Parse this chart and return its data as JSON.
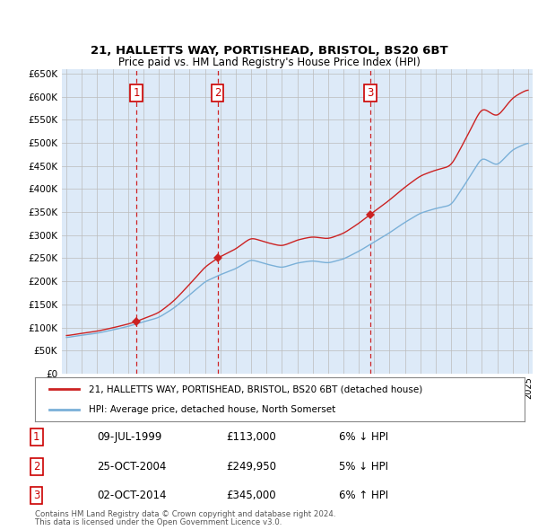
{
  "title1": "21, HALLETTS WAY, PORTISHEAD, BRISTOL, BS20 6BT",
  "title2": "Price paid vs. HM Land Registry's House Price Index (HPI)",
  "ylim": [
    0,
    660000
  ],
  "yticks": [
    0,
    50000,
    100000,
    150000,
    200000,
    250000,
    300000,
    350000,
    400000,
    450000,
    500000,
    550000,
    600000,
    650000
  ],
  "ytick_labels": [
    "£0",
    "£50K",
    "£100K",
    "£150K",
    "£200K",
    "£250K",
    "£300K",
    "£350K",
    "£400K",
    "£450K",
    "£500K",
    "£550K",
    "£600K",
    "£650K"
  ],
  "transactions": [
    {
      "date": 1999.54,
      "price": 113000,
      "label": "1"
    },
    {
      "date": 2004.82,
      "price": 249950,
      "label": "2"
    },
    {
      "date": 2014.75,
      "price": 345000,
      "label": "3"
    }
  ],
  "transaction_dates_str": [
    "09-JUL-1999",
    "25-OCT-2004",
    "02-OCT-2014"
  ],
  "transaction_prices_str": [
    "£113,000",
    "£249,950",
    "£345,000"
  ],
  "transaction_notes": [
    "6% ↓ HPI",
    "5% ↓ HPI",
    "6% ↑ HPI"
  ],
  "legend_line1": "21, HALLETTS WAY, PORTISHEAD, BRISTOL, BS20 6BT (detached house)",
  "legend_line2": "HPI: Average price, detached house, North Somerset",
  "footer1": "Contains HM Land Registry data © Crown copyright and database right 2024.",
  "footer2": "This data is licensed under the Open Government Licence v3.0.",
  "hpi_color": "#7ab0d8",
  "price_color": "#cc2222",
  "vline_color": "#cc0000",
  "bg_color": "#ddeaf8",
  "grid_color": "#bbbbbb",
  "box_color": "#cc0000",
  "xlim_left": 1994.7,
  "xlim_right": 2025.3
}
